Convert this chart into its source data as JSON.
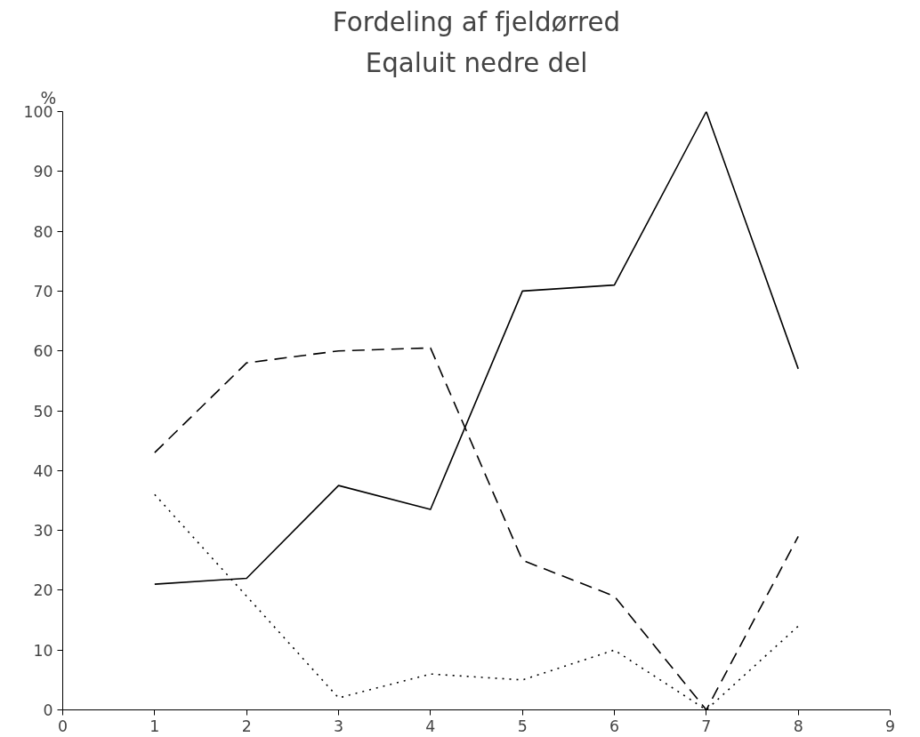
{
  "chart_data": {
    "type": "line",
    "title": "Fordeling af fjeldørred",
    "subtitle": "Eqaluit nedre del",
    "ylabel": "%",
    "x": [
      1,
      2,
      3,
      4,
      5,
      6,
      7,
      8
    ],
    "series": [
      {
        "color": "#000000",
        "line_style": "solid",
        "values": [
          21,
          22,
          37.5,
          33.5,
          70,
          71,
          100,
          57
        ]
      },
      {
        "color": "#000000",
        "line_style": "dashed",
        "values": [
          43,
          58,
          60,
          60.5,
          25,
          19,
          0,
          29
        ]
      },
      {
        "color": "#000000",
        "line_style": "dotted",
        "values": [
          36,
          19,
          2,
          6,
          5,
          10,
          0,
          14
        ]
      }
    ],
    "xlim": [
      0,
      9
    ],
    "xticks": [
      0,
      1,
      2,
      3,
      4,
      5,
      6,
      7,
      8,
      9
    ],
    "ylim": [
      0,
      100
    ],
    "yticks": [
      0,
      10,
      20,
      30,
      40,
      50,
      60,
      70,
      80,
      90,
      100
    ],
    "grid": false,
    "marker": "none"
  }
}
